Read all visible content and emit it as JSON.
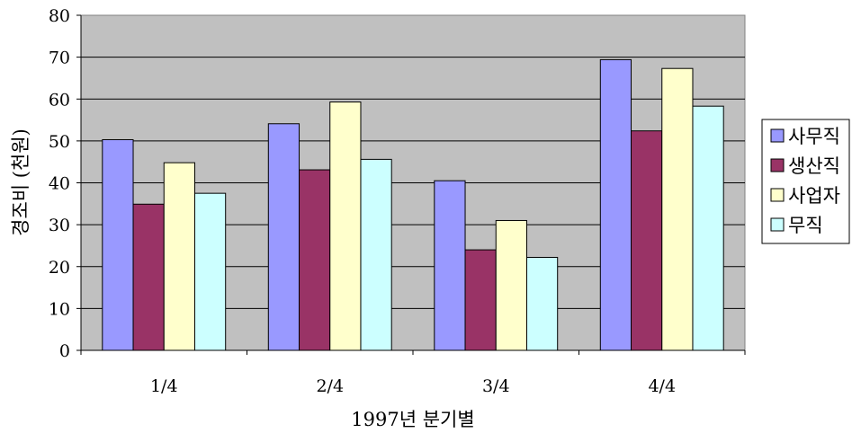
{
  "chart_data": {
    "type": "bar",
    "title": "",
    "xlabel": "1997년 분기별",
    "ylabel": "경조비 (천원)",
    "categories": [
      "1/4",
      "2/4",
      "3/4",
      "4/4"
    ],
    "ylim": [
      0,
      80
    ],
    "yticks": [
      0,
      10,
      20,
      30,
      40,
      50,
      60,
      70,
      80
    ],
    "grid": true,
    "legend_position": "right",
    "plot_background": "#c0c0c0",
    "series": [
      {
        "name": "사무직",
        "color": "#9999ff",
        "values": [
          50.3,
          54.1,
          40.5,
          69.4
        ]
      },
      {
        "name": "생산직",
        "color": "#993366",
        "values": [
          34.9,
          43.1,
          24.0,
          52.4
        ]
      },
      {
        "name": "사업자",
        "color": "#ffffcc",
        "values": [
          44.8,
          59.3,
          31.0,
          67.3
        ]
      },
      {
        "name": "무직",
        "color": "#ccffff",
        "values": [
          37.5,
          45.6,
          22.2,
          58.3
        ]
      }
    ]
  }
}
